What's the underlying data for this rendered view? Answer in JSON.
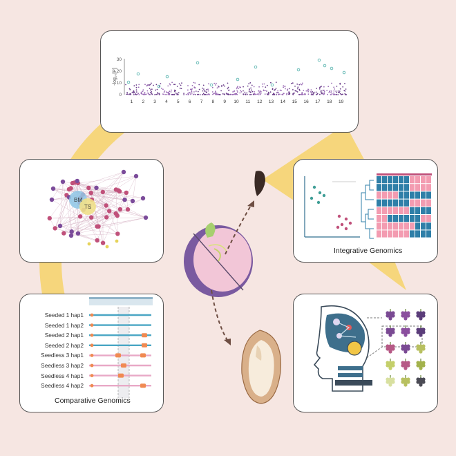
{
  "colors": {
    "background": "#f6e6e2",
    "arc": "#f6d67c",
    "gwas_points": "#7b4b9a",
    "gwas_hits": "#5fb7b2",
    "seeded_track": "#4aa6c4",
    "seedless_track": "#e8a8c6",
    "variant": "#f08a52",
    "heat_blue": "#2f7fa8",
    "heat_pink": "#f39cb1",
    "network_node": "#c0507a",
    "network_hub_bm": "#8ec7e6",
    "network_hub_ts": "#efe08a"
  },
  "gwas": {
    "ylabel": "-log₁₀[P]",
    "yticks": [
      "0",
      "10",
      "20",
      "30"
    ],
    "chromosomes": [
      "1",
      "2",
      "3",
      "4",
      "5",
      "6",
      "7",
      "8",
      "9",
      "10",
      "11",
      "12",
      "13",
      "14",
      "15",
      "16",
      "17",
      "18",
      "19"
    ]
  },
  "network": {
    "hub_bm": "BM",
    "hub_ts": "TS"
  },
  "integrative": {
    "title": "Integrative Genomics"
  },
  "comparative": {
    "title": "Comparative Genomics",
    "haplotypes": [
      {
        "label": "Seeded 1 hap1",
        "group": "seeded"
      },
      {
        "label": "Seeded 1 hap2",
        "group": "seeded"
      },
      {
        "label": "Seeded 2 hap1",
        "group": "seeded"
      },
      {
        "label": "Seeded 2 hap2",
        "group": "seeded"
      },
      {
        "label": "Seedless 3 hap1",
        "group": "seedless"
      },
      {
        "label": "Seedless 3 hap2",
        "group": "seedless"
      },
      {
        "label": "Seedless 4 hap1",
        "group": "seedless"
      },
      {
        "label": "Seedless 4 hap2",
        "group": "seedless"
      }
    ]
  },
  "ai": {
    "icon": "ai-robot-head-icon",
    "grape_colors": [
      "#7a4a93",
      "#8a4f9e",
      "#5b3d7a",
      "#7a4a93",
      "#8a4f9e",
      "#5b3d7a",
      "#b65a86",
      "#7a4a93",
      "#b8c060",
      "#c4cf6a",
      "#b65a86",
      "#a3b24c",
      "#d8e0a0",
      "#b8c060",
      "#4b4b55"
    ]
  }
}
